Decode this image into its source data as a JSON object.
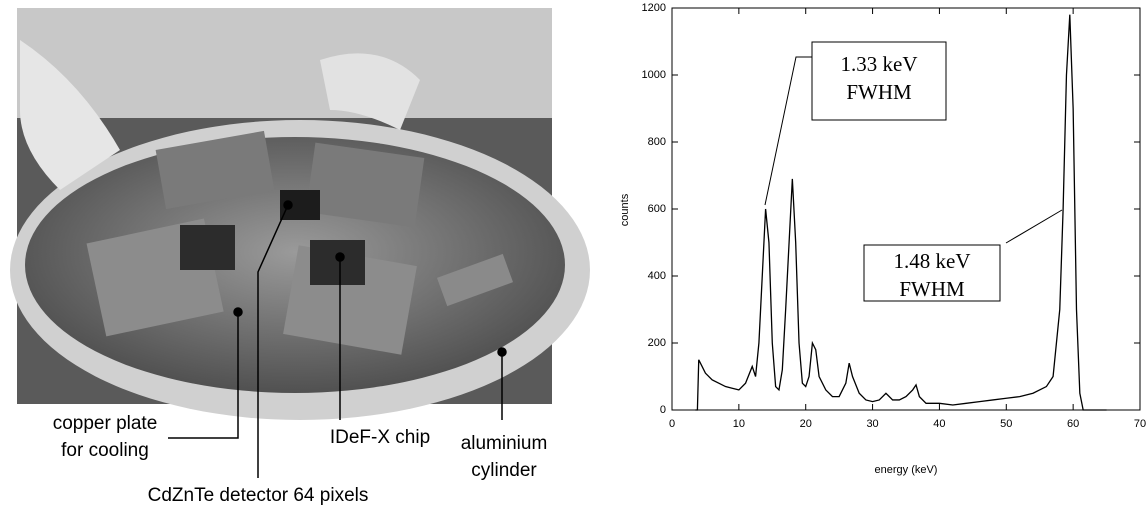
{
  "photo_labels": [
    {
      "lines": [
        "copper plate",
        "for cooling"
      ]
    },
    {
      "lines": [
        "IDeF-X chip"
      ]
    },
    {
      "lines": [
        "aluminium",
        "cylinder"
      ]
    },
    {
      "lines": [
        "CdZnTe detector 64 pixels"
      ]
    }
  ],
  "chart_data": {
    "type": "line",
    "xlabel": "energy (keV)",
    "ylabel": "counts",
    "xlim": [
      0,
      70
    ],
    "xticks": [
      0,
      10,
      20,
      30,
      40,
      50,
      60,
      70
    ],
    "ylim": [
      0,
      1200
    ],
    "yticks": [
      0,
      200,
      400,
      600,
      800,
      1000,
      1200
    ],
    "color": "#000000",
    "annotations": [
      {
        "lines": [
          "1.33 keV",
          "FWHM"
        ]
      },
      {
        "lines": [
          "1.48 keV",
          "FWHM"
        ]
      }
    ],
    "x": [
      3.5,
      3.8,
      4,
      4.5,
      5,
      6,
      7,
      8,
      9,
      10,
      11,
      12,
      12.5,
      13,
      14,
      14.5,
      15,
      15.5,
      16,
      16.5,
      17,
      18,
      18.5,
      19,
      19.5,
      20,
      20.5,
      21,
      21.5,
      22,
      23,
      24,
      25,
      26,
      26.5,
      27,
      28,
      29,
      30,
      31,
      32,
      33,
      34,
      35,
      36,
      36.5,
      37,
      38,
      40,
      42,
      44,
      46,
      48,
      50,
      52,
      54,
      56,
      57,
      58,
      58.5,
      59,
      59.5,
      60,
      60.5,
      61,
      61.5,
      65
    ],
    "values": [
      0,
      0,
      150,
      130,
      110,
      90,
      80,
      70,
      65,
      60,
      80,
      130,
      100,
      200,
      600,
      500,
      200,
      70,
      60,
      120,
      300,
      690,
      500,
      200,
      80,
      70,
      100,
      200,
      180,
      100,
      60,
      40,
      40,
      80,
      140,
      100,
      50,
      30,
      25,
      30,
      50,
      30,
      30,
      40,
      60,
      75,
      40,
      20,
      20,
      15,
      20,
      25,
      30,
      35,
      40,
      50,
      70,
      100,
      300,
      600,
      1000,
      1180,
      900,
      300,
      50,
      0,
      0
    ]
  }
}
